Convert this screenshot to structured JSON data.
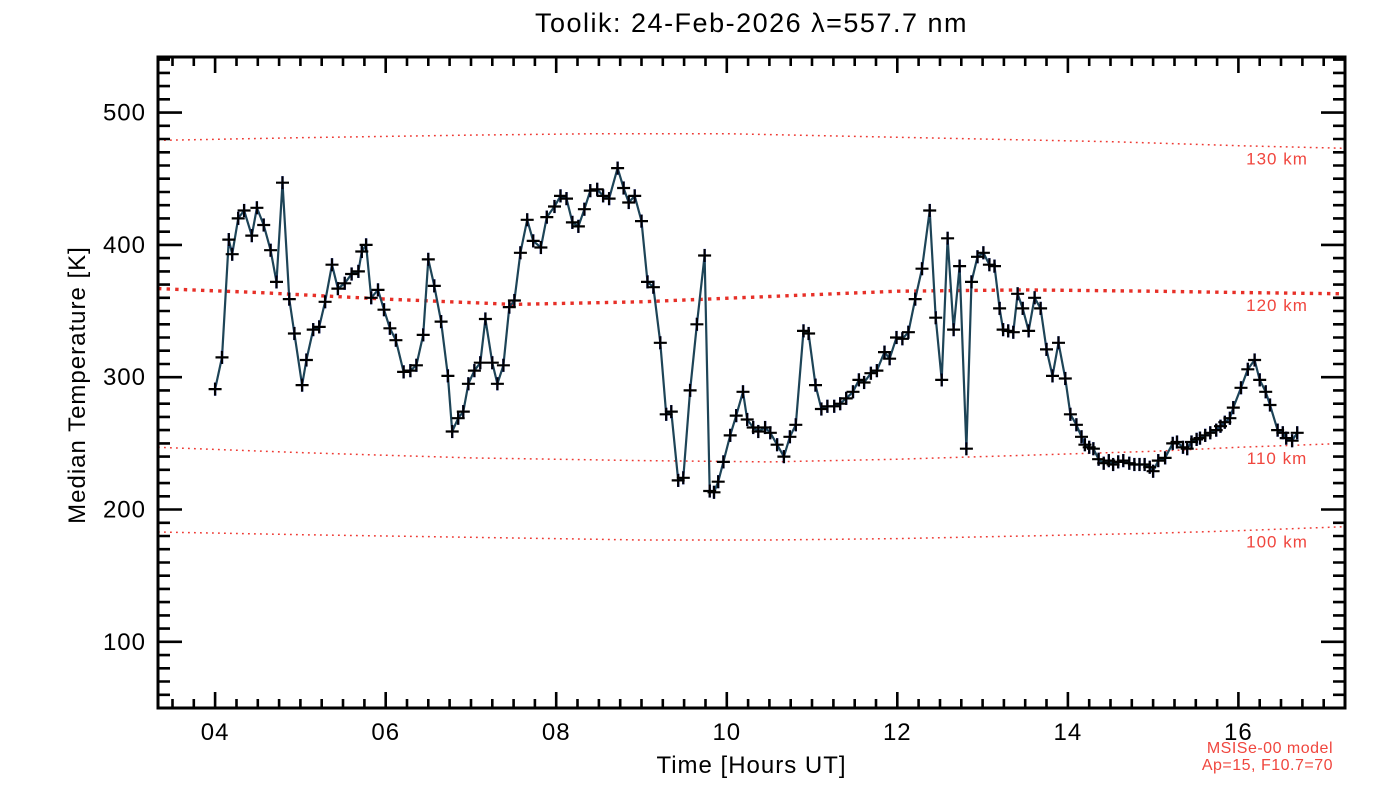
{
  "title": "Toolik: 24-Feb-2026 λ=557.7 nm",
  "colors": {
    "frame": "#000000",
    "data_line": "#1d4457",
    "marker": "#000000",
    "error_bar": "#2743d6",
    "model_line": "#ee3a33",
    "model_line_bold": "#e73028",
    "model_label": "#f0463e",
    "annotation": "#f0463e",
    "background": "#ffffff"
  },
  "annotations": {
    "line1": "MSISe-00 model",
    "line2": "Ap=15, F10.7=70"
  },
  "chart_data": {
    "type": "line",
    "title": "Toolik: 24-Feb-2026 λ=557.7 nm",
    "xlabel": "Time [Hours UT]",
    "ylabel": "Median Temperature [K]",
    "xlim": [
      3.33,
      17.25
    ],
    "ylim": [
      50,
      542
    ],
    "grid": false,
    "x_major_ticks": [
      4,
      6,
      8,
      10,
      12,
      14,
      16
    ],
    "x_tick_labels": [
      "04",
      "06",
      "08",
      "10",
      "12",
      "14",
      "16"
    ],
    "x_minor_step": 0.25,
    "y_major_ticks": [
      100,
      200,
      300,
      400,
      500
    ],
    "y_tick_labels": [
      "100",
      "200",
      "300",
      "400",
      "500"
    ],
    "y_minor_step": 10,
    "marker": "plus",
    "error_bar_K": 5,
    "series": [
      {
        "name": "median-temperature",
        "points": [
          [
            4.0,
            291
          ],
          [
            4.08,
            315
          ],
          [
            4.16,
            404
          ],
          [
            4.2,
            393
          ],
          [
            4.27,
            420
          ],
          [
            4.34,
            426
          ],
          [
            4.43,
            407
          ],
          [
            4.49,
            428
          ],
          [
            4.57,
            415
          ],
          [
            4.65,
            396
          ],
          [
            4.72,
            372
          ],
          [
            4.79,
            447
          ],
          [
            4.87,
            359
          ],
          [
            4.93,
            333
          ],
          [
            5.02,
            294
          ],
          [
            5.07,
            313
          ],
          [
            5.15,
            336
          ],
          [
            5.22,
            338
          ],
          [
            5.29,
            357
          ],
          [
            5.37,
            385
          ],
          [
            5.44,
            367
          ],
          [
            5.52,
            371
          ],
          [
            5.6,
            378
          ],
          [
            5.68,
            380
          ],
          [
            5.72,
            395
          ],
          [
            5.77,
            400
          ],
          [
            5.83,
            360
          ],
          [
            5.91,
            366
          ],
          [
            5.98,
            351
          ],
          [
            6.05,
            337
          ],
          [
            6.12,
            328
          ],
          [
            6.21,
            304
          ],
          [
            6.29,
            305
          ],
          [
            6.36,
            309
          ],
          [
            6.44,
            332
          ],
          [
            6.5,
            389
          ],
          [
            6.57,
            369
          ],
          [
            6.65,
            342
          ],
          [
            6.73,
            301
          ],
          [
            6.78,
            259
          ],
          [
            6.85,
            269
          ],
          [
            6.91,
            274
          ],
          [
            6.97,
            295
          ],
          [
            7.04,
            305
          ],
          [
            7.11,
            311
          ],
          [
            7.17,
            344
          ],
          [
            7.25,
            311
          ],
          [
            7.31,
            295
          ],
          [
            7.38,
            309
          ],
          [
            7.45,
            353
          ],
          [
            7.51,
            358
          ],
          [
            7.58,
            394
          ],
          [
            7.66,
            419
          ],
          [
            7.73,
            403
          ],
          [
            7.82,
            398
          ],
          [
            7.89,
            421
          ],
          [
            7.98,
            429
          ],
          [
            8.05,
            437
          ],
          [
            8.12,
            435
          ],
          [
            8.19,
            417
          ],
          [
            8.26,
            414
          ],
          [
            8.33,
            427
          ],
          [
            8.4,
            441
          ],
          [
            8.48,
            442
          ],
          [
            8.55,
            437
          ],
          [
            8.62,
            435
          ],
          [
            8.72,
            458
          ],
          [
            8.79,
            443
          ],
          [
            8.85,
            432
          ],
          [
            8.92,
            437
          ],
          [
            9.0,
            418
          ],
          [
            9.07,
            372
          ],
          [
            9.14,
            368
          ],
          [
            9.22,
            326
          ],
          [
            9.29,
            272
          ],
          [
            9.35,
            274
          ],
          [
            9.43,
            222
          ],
          [
            9.49,
            224
          ],
          [
            9.57,
            290
          ],
          [
            9.65,
            340
          ],
          [
            9.74,
            392
          ],
          [
            9.8,
            214
          ],
          [
            9.85,
            213
          ],
          [
            9.9,
            221
          ],
          [
            9.96,
            236
          ],
          [
            10.04,
            256
          ],
          [
            10.11,
            271
          ],
          [
            10.19,
            289
          ],
          [
            10.24,
            268
          ],
          [
            10.31,
            262
          ],
          [
            10.37,
            259
          ],
          [
            10.45,
            262
          ],
          [
            10.51,
            258
          ],
          [
            10.59,
            249
          ],
          [
            10.67,
            240
          ],
          [
            10.74,
            255
          ],
          [
            10.81,
            264
          ],
          [
            10.9,
            335
          ],
          [
            10.96,
            333
          ],
          [
            11.04,
            294
          ],
          [
            11.11,
            276
          ],
          [
            11.18,
            278
          ],
          [
            11.26,
            278
          ],
          [
            11.33,
            280
          ],
          [
            11.4,
            284
          ],
          [
            11.48,
            289
          ],
          [
            11.55,
            298
          ],
          [
            11.61,
            296
          ],
          [
            11.69,
            303
          ],
          [
            11.76,
            305
          ],
          [
            11.85,
            319
          ],
          [
            11.91,
            314
          ],
          [
            11.99,
            330
          ],
          [
            12.06,
            329
          ],
          [
            12.13,
            334
          ],
          [
            12.21,
            359
          ],
          [
            12.29,
            382
          ],
          [
            12.38,
            426
          ],
          [
            12.45,
            345
          ],
          [
            12.52,
            298
          ],
          [
            12.59,
            405
          ],
          [
            12.66,
            336
          ],
          [
            12.73,
            384
          ],
          [
            12.81,
            246
          ],
          [
            12.87,
            372
          ],
          [
            12.94,
            391
          ],
          [
            13.01,
            394
          ],
          [
            13.08,
            385
          ],
          [
            13.14,
            384
          ],
          [
            13.2,
            352
          ],
          [
            13.24,
            336
          ],
          [
            13.3,
            335
          ],
          [
            13.36,
            334
          ],
          [
            13.41,
            363
          ],
          [
            13.47,
            352
          ],
          [
            13.54,
            335
          ],
          [
            13.61,
            360
          ],
          [
            13.68,
            352
          ],
          [
            13.75,
            321
          ],
          [
            13.82,
            301
          ],
          [
            13.89,
            326
          ],
          [
            13.97,
            299
          ],
          [
            14.03,
            272
          ],
          [
            14.1,
            264
          ],
          [
            14.16,
            255
          ],
          [
            14.2,
            249
          ],
          [
            14.25,
            247
          ],
          [
            14.3,
            246
          ],
          [
            14.36,
            238
          ],
          [
            14.42,
            235
          ],
          [
            14.48,
            237
          ],
          [
            14.53,
            234
          ],
          [
            14.59,
            236
          ],
          [
            14.65,
            237
          ],
          [
            14.72,
            235
          ],
          [
            14.78,
            234
          ],
          [
            14.84,
            234
          ],
          [
            14.9,
            234
          ],
          [
            14.96,
            232
          ],
          [
            15.0,
            229
          ],
          [
            15.06,
            237
          ],
          [
            15.14,
            239
          ],
          [
            15.23,
            250
          ],
          [
            15.28,
            251
          ],
          [
            15.35,
            247
          ],
          [
            15.4,
            246
          ],
          [
            15.45,
            251
          ],
          [
            15.51,
            253
          ],
          [
            15.55,
            254
          ],
          [
            15.61,
            256
          ],
          [
            15.67,
            258
          ],
          [
            15.74,
            260
          ],
          [
            15.79,
            263
          ],
          [
            15.84,
            266
          ],
          [
            15.9,
            269
          ],
          [
            15.94,
            277
          ],
          [
            16.03,
            292
          ],
          [
            16.11,
            306
          ],
          [
            16.19,
            313
          ],
          [
            16.25,
            298
          ],
          [
            16.32,
            289
          ],
          [
            16.37,
            279
          ],
          [
            16.46,
            260
          ],
          [
            16.52,
            258
          ],
          [
            16.56,
            254
          ],
          [
            16.63,
            252
          ],
          [
            16.69,
            258
          ]
        ]
      }
    ],
    "model_reference_curves": [
      {
        "label": "130 km",
        "bold": false,
        "points": [
          [
            3.33,
            479
          ],
          [
            5,
            481
          ],
          [
            7,
            483
          ],
          [
            8.5,
            484
          ],
          [
            10,
            484
          ],
          [
            11.5,
            482
          ],
          [
            13,
            480
          ],
          [
            14.5,
            478
          ],
          [
            16,
            475
          ],
          [
            17.25,
            473
          ]
        ]
      },
      {
        "label": "120 km",
        "bold": true,
        "points": [
          [
            3.33,
            367
          ],
          [
            4.5,
            364
          ],
          [
            6,
            359
          ],
          [
            7.5,
            355
          ],
          [
            9,
            357
          ],
          [
            10.5,
            361
          ],
          [
            12,
            365
          ],
          [
            13.5,
            366
          ],
          [
            15,
            365
          ],
          [
            16,
            364
          ],
          [
            17.25,
            363
          ]
        ]
      },
      {
        "label": "110 km",
        "bold": false,
        "points": [
          [
            3.33,
            247
          ],
          [
            5,
            243
          ],
          [
            7,
            239
          ],
          [
            9,
            237
          ],
          [
            10.5,
            236
          ],
          [
            12,
            238
          ],
          [
            13.5,
            241
          ],
          [
            15,
            244
          ],
          [
            16,
            247
          ],
          [
            17.25,
            250
          ]
        ]
      },
      {
        "label": "100 km",
        "bold": false,
        "points": [
          [
            3.33,
            183
          ],
          [
            5,
            181
          ],
          [
            7,
            179
          ],
          [
            9,
            177
          ],
          [
            10.5,
            177
          ],
          [
            12,
            178
          ],
          [
            13.5,
            180
          ],
          [
            15,
            182
          ],
          [
            16,
            184
          ],
          [
            17.25,
            187
          ]
        ]
      }
    ]
  }
}
